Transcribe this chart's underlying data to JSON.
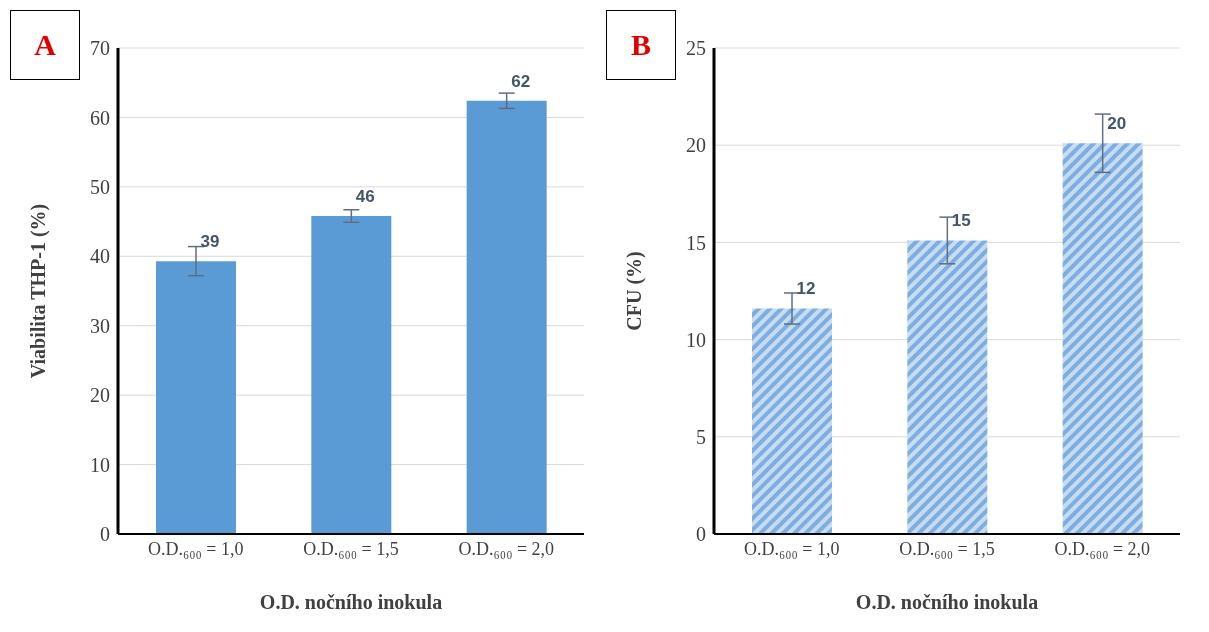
{
  "chart_data": [
    {
      "type": "bar",
      "annotations": [
        "A"
      ],
      "xlabel": "O.D. nočního inokula",
      "ylabel": "Viabilita THP-1 (%)",
      "categories": [
        "O.D.₆₀₀ = 1,0",
        "O.D.₆₀₀ = 1,5",
        "O.D.₆₀₀ = 2,0"
      ],
      "values": [
        39.3,
        45.8,
        62.4
      ],
      "errors": [
        2.1,
        0.9,
        1.1
      ],
      "value_labels": [
        "39",
        "46",
        "62"
      ],
      "color": "#5b9bd5",
      "ylim": [
        0,
        70
      ],
      "yticks": [
        0,
        10,
        20,
        30,
        40,
        50,
        60,
        70
      ],
      "grid": "y"
    },
    {
      "type": "bar",
      "annotations": [
        "B"
      ],
      "xlabel": "O.D. nočního inokula",
      "ylabel": "CFU (%)",
      "categories": [
        "O.D.₆₀₀ = 1,0",
        "O.D.₆₀₀ = 1,5",
        "O.D.₆₀₀ = 2,0"
      ],
      "values": [
        11.6,
        15.1,
        20.1
      ],
      "errors": [
        0.8,
        1.2,
        1.5
      ],
      "value_labels": [
        "12",
        "15",
        "20"
      ],
      "color": "#7eaee0",
      "ylim": [
        0,
        25
      ],
      "yticks": [
        0,
        5,
        10,
        15,
        20,
        25
      ],
      "grid": "y"
    }
  ]
}
